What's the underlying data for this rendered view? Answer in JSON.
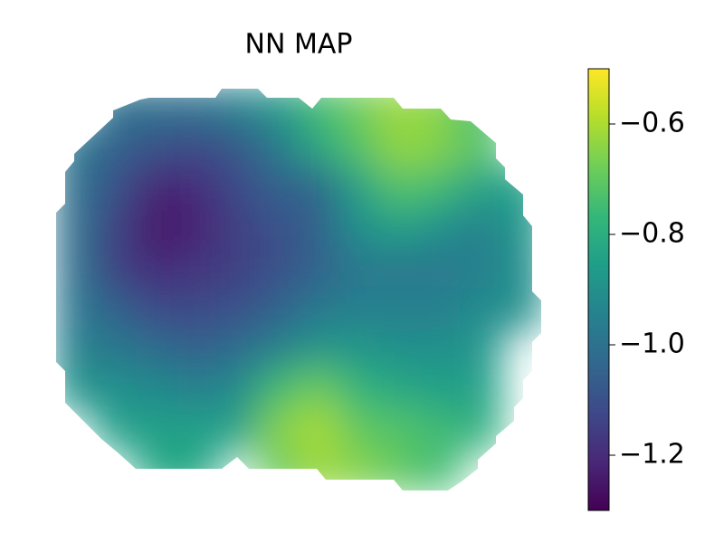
{
  "chart_data": {
    "type": "heatmap",
    "title": "NN MAP",
    "colormap": "viridis",
    "z": [
      [
        null,
        -1.0,
        -1.0,
        -1.0,
        -0.95,
        -0.88,
        -0.75,
        -0.68,
        -0.62,
        -0.65,
        -0.75,
        null
      ],
      [
        -0.98,
        -1.05,
        -1.1,
        -1.12,
        -1.08,
        -0.98,
        -0.82,
        -0.72,
        -0.63,
        -0.65,
        -0.72,
        null
      ],
      [
        -1.0,
        -1.1,
        -1.22,
        -1.2,
        -1.12,
        -1.05,
        -1.05,
        -0.85,
        -0.72,
        -0.75,
        -0.85,
        -0.85
      ],
      [
        -1.0,
        -1.15,
        -1.25,
        -1.22,
        -1.15,
        -1.1,
        -1.05,
        -0.9,
        -0.85,
        -0.9,
        -0.95,
        -0.88
      ],
      [
        -1.0,
        -1.15,
        -1.2,
        -1.18,
        -1.15,
        -1.1,
        -1.05,
        -0.98,
        -0.98,
        -0.98,
        -0.95,
        -0.9
      ],
      [
        -0.98,
        -1.05,
        -1.12,
        -1.12,
        -1.1,
        -1.05,
        -0.98,
        -0.95,
        -0.95,
        -0.95,
        -0.92,
        -0.9
      ],
      [
        -0.95,
        -0.98,
        -1.02,
        -1.05,
        -1.02,
        -0.95,
        -0.88,
        -0.88,
        -0.9,
        -0.9,
        -0.88,
        null
      ],
      [
        -0.88,
        -0.9,
        -0.92,
        -0.95,
        -0.92,
        -0.75,
        -0.68,
        -0.78,
        -0.82,
        -0.85,
        -0.85,
        null
      ],
      [
        null,
        -0.85,
        -0.85,
        -0.85,
        -0.85,
        -0.65,
        -0.6,
        -0.7,
        -0.72,
        -0.75,
        -0.8,
        null
      ],
      [
        null,
        null,
        -0.82,
        -0.82,
        null,
        -0.7,
        -0.62,
        -0.65,
        -0.7,
        -0.75,
        null,
        null
      ]
    ],
    "clim": [
      -1.3,
      -0.5
    ],
    "cticks": [
      {
        "value": -1.2,
        "label": "−1.2"
      },
      {
        "value": -1.0,
        "label": "−1.0"
      },
      {
        "value": -0.8,
        "label": "−0.8"
      },
      {
        "value": -0.6,
        "label": "−0.6"
      }
    ]
  }
}
